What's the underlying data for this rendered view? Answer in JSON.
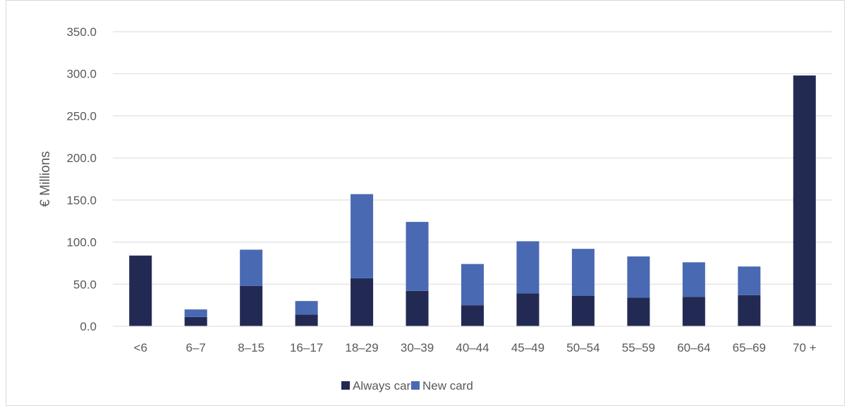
{
  "chart_data": {
    "type": "bar",
    "stacked": true,
    "title": "",
    "xlabel": "",
    "ylabel": "€ Millions",
    "ylim": [
      0,
      350
    ],
    "yticks": [
      "0.0",
      "50.0",
      "100.0",
      "150.0",
      "200.0",
      "250.0",
      "300.0",
      "350.0"
    ],
    "grid": true,
    "legend_position": "bottom",
    "categories": [
      "<6",
      "6–7",
      "8–15",
      "16–17",
      "18–29",
      "30–39",
      "40–44",
      "45–49",
      "50–54",
      "55–59",
      "60–64",
      "65–69",
      "70 +"
    ],
    "series": [
      {
        "name": "Always card",
        "color": "#222a54",
        "values": [
          84,
          11,
          48,
          14,
          57,
          42,
          25,
          39,
          36,
          34,
          35,
          37,
          298
        ]
      },
      {
        "name": "New card",
        "color": "#4a69b3",
        "values": [
          0,
          9,
          43,
          16,
          100,
          82,
          49,
          62,
          56,
          49,
          41,
          34,
          0
        ]
      }
    ]
  }
}
